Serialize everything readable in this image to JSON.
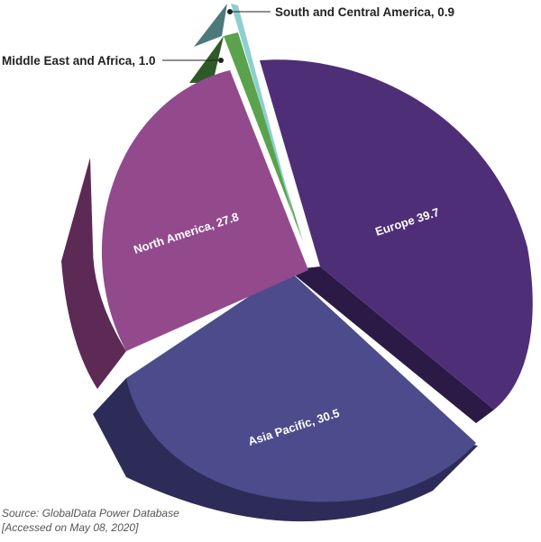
{
  "chart_data": {
    "type": "pie",
    "style": "3d-exploded",
    "categories": [
      "Europe",
      "Asia Pacific",
      "North America",
      "Middle East and Africa",
      "South and Central America"
    ],
    "values": [
      39.7,
      30.5,
      27.8,
      1.0,
      0.9
    ],
    "labels": {
      "europe": "Europe 39.7",
      "asia_pacific": "Asia Pacific, 30.5",
      "north_america": "North America, 27.8",
      "middle_east_africa": "Middle East and Africa, 1.0",
      "south_central_america": "South and Central America, 0.9"
    },
    "colors": {
      "europe": "#4f2e78",
      "asia_pacific": "#4c4b8c",
      "north_america": "#924a8c",
      "middle_east_africa": "#5aa24c",
      "south_central_america": "#8ccfcf"
    }
  },
  "source": {
    "line1": "Source: GlobalData Power Database",
    "line2": "[Accessed on May 08, 2020]"
  }
}
